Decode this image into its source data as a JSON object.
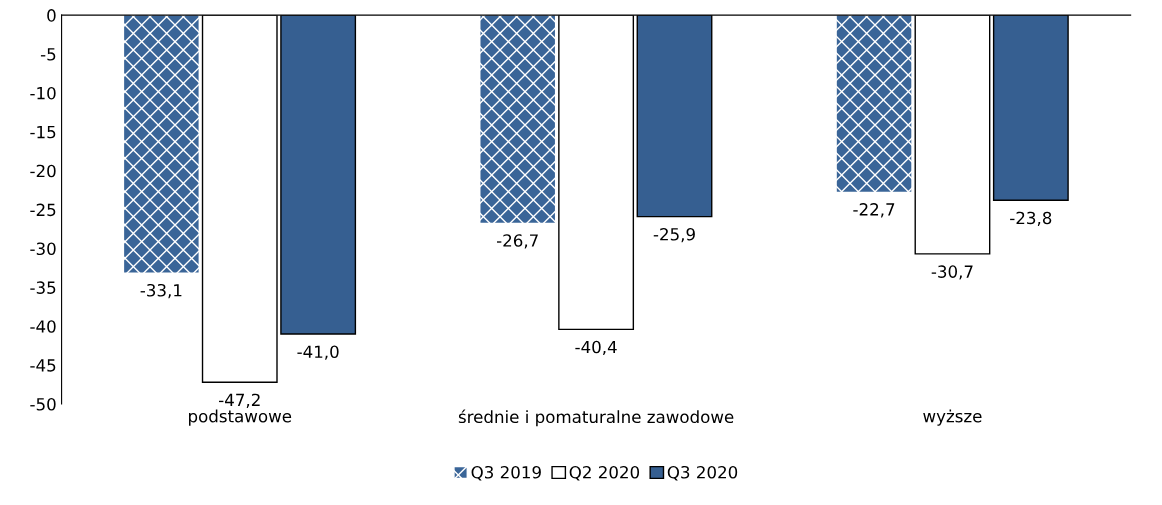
{
  "chart_data": {
    "type": "bar",
    "categories": [
      "podstawowe",
      "średnie i pomaturalne zawodowe",
      "wyższe"
    ],
    "series": [
      {
        "name": "Q3 2019",
        "color": "#3a6598",
        "values": [
          -33.1,
          -26.7,
          -22.7
        ],
        "value_labels": [
          "-33,1",
          "-26,7",
          "-22,7"
        ]
      },
      {
        "name": "Q2 2020",
        "color": "#ffffff",
        "values": [
          -47.2,
          -40.4,
          -30.7
        ],
        "value_labels": [
          "-47,2",
          "-40,4",
          "-30,7"
        ]
      },
      {
        "name": "Q3 2020",
        "color": "#365f91",
        "values": [
          -41.0,
          -25.9,
          -23.8
        ],
        "value_labels": [
          "-41,0",
          "-25,9",
          "-23,8"
        ]
      }
    ],
    "ylim": [
      -50,
      0
    ],
    "yticks": [
      -50,
      -45,
      -40,
      -35,
      -30,
      -25,
      -20,
      -15,
      -10,
      -5,
      0
    ],
    "grid": false,
    "legend": "bottom"
  }
}
